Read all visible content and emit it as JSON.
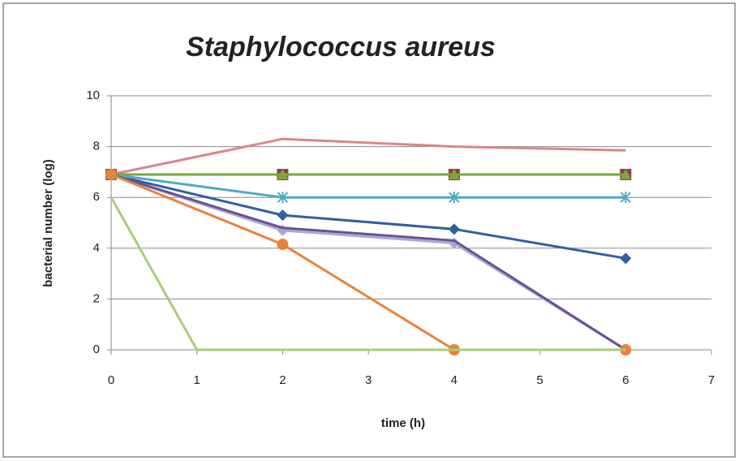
{
  "chart_data": {
    "type": "line",
    "title": "Staphylococcus aureus",
    "x_label": "time (h)",
    "y_label": "bacterial number (log)",
    "xlim": [
      0,
      7
    ],
    "xticks": [
      0,
      1,
      2,
      3,
      4,
      5,
      6,
      7
    ],
    "ylim": [
      0,
      10
    ],
    "yticks": [
      0,
      2,
      4,
      6,
      8,
      10
    ],
    "grid": true,
    "series": [
      {
        "color": "#2f5f9f",
        "marker": "diamond",
        "x": [
          0,
          2,
          4,
          6
        ],
        "values": [
          6.9,
          5.3,
          4.75,
          3.6
        ]
      },
      {
        "color": "#d9868b",
        "marker": "none",
        "x": [
          0,
          2,
          4,
          6
        ],
        "values": [
          6.9,
          8.3,
          8.0,
          7.85
        ]
      },
      {
        "color": "#9b3b3b",
        "marker": "square",
        "x": [
          0,
          2,
          4,
          6
        ],
        "values": [
          6.9,
          6.9,
          6.9,
          6.9
        ]
      },
      {
        "color": "#7aa83c",
        "marker": "triangle",
        "x": [
          0,
          2,
          4,
          6
        ],
        "values": [
          6.9,
          6.9,
          6.9,
          6.9
        ]
      },
      {
        "color": "#4bacc6",
        "marker": "x",
        "x": [
          0,
          2,
          4,
          6
        ],
        "values": [
          6.9,
          6.0,
          6.0,
          6.0
        ]
      },
      {
        "color": "#a9a6d8",
        "marker": "diamond",
        "x": [
          0,
          2,
          4,
          6
        ],
        "values": [
          6.9,
          4.7,
          4.2,
          0
        ]
      },
      {
        "color": "#6a4f94",
        "marker": "none",
        "x": [
          0,
          2,
          4,
          6
        ],
        "values": [
          6.9,
          4.8,
          4.3,
          0
        ]
      },
      {
        "color": "#e8823a",
        "marker": "circle",
        "x": [
          0,
          2,
          4,
          6
        ],
        "values": [
          6.9,
          4.15,
          0,
          0
        ]
      },
      {
        "color": "#a9cc7a",
        "marker": "none",
        "x": [
          0,
          1,
          2,
          4,
          6
        ],
        "values": [
          6.0,
          0,
          0,
          0,
          0
        ]
      }
    ]
  }
}
